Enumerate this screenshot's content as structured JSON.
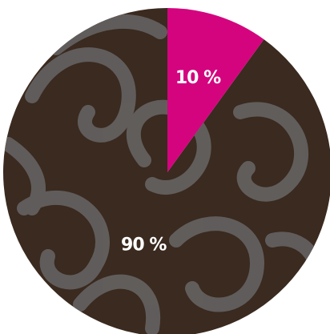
{
  "chart_data": {
    "type": "pie",
    "values": [
      10,
      90
    ],
    "value_labels": [
      "10 %",
      "90 %"
    ],
    "colors": [
      "#d4047f",
      "#3a2a1f"
    ]
  }
}
